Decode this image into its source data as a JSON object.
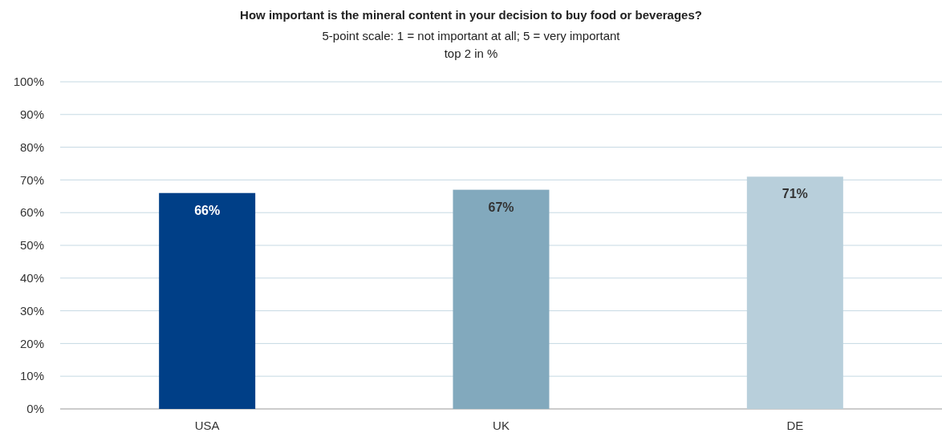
{
  "chart_data": {
    "type": "bar",
    "title": "How important is the mineral content in your decision to buy food or beverages?",
    "subtitle": "5-point scale: 1 = not important at all; 5 = very important\ntop 2 in %",
    "categories": [
      "USA",
      "UK",
      "DE"
    ],
    "values": [
      66,
      67,
      71
    ],
    "colors": [
      "#003f87",
      "#82a9bd",
      "#b8cfdb"
    ],
    "value_labels": [
      "66%",
      "67%",
      "71%"
    ],
    "ylim": [
      0,
      100
    ],
    "yticks": [
      {
        "value": 0,
        "label": "0%"
      },
      {
        "value": 10,
        "label": "10%"
      },
      {
        "value": 20,
        "label": "20%"
      },
      {
        "value": 30,
        "label": "30%"
      },
      {
        "value": 40,
        "label": "40%"
      },
      {
        "value": 50,
        "label": "50%"
      },
      {
        "value": 60,
        "label": "60%"
      },
      {
        "value": 70,
        "label": "70%"
      },
      {
        "value": 80,
        "label": "80%"
      },
      {
        "value": 90,
        "label": "90%"
      },
      {
        "value": 100,
        "label": "100%"
      }
    ],
    "grid": "y"
  }
}
